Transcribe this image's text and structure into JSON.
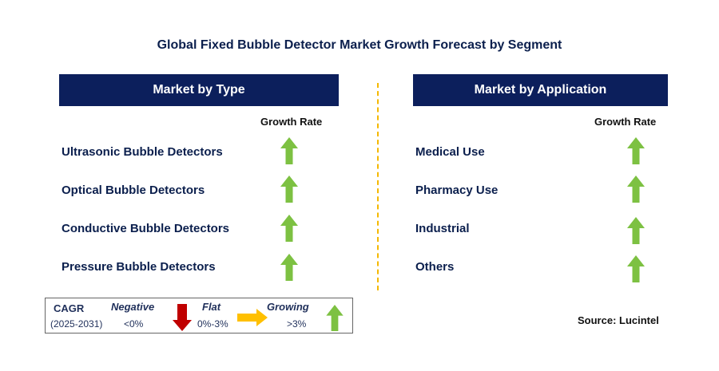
{
  "title": "Global Fixed Bubble Detector Market Growth Forecast by Segment",
  "left_panel": {
    "header": "Market by Type",
    "growth_label": "Growth Rate",
    "items": [
      {
        "label": "Ultrasonic Bubble Detectors",
        "trend": "growing"
      },
      {
        "label": "Optical Bubble Detectors",
        "trend": "growing"
      },
      {
        "label": "Conductive Bubble Detectors",
        "trend": "growing"
      },
      {
        "label": "Pressure Bubble Detectors",
        "trend": "growing"
      }
    ]
  },
  "right_panel": {
    "header": "Market by Application",
    "growth_label": "Growth Rate",
    "items": [
      {
        "label": "Medical Use",
        "trend": "growing"
      },
      {
        "label": "Pharmacy Use",
        "trend": "growing"
      },
      {
        "label": "Industrial",
        "trend": "growing"
      },
      {
        "label": "Others",
        "trend": "growing"
      }
    ]
  },
  "legend": {
    "cagr": "CAGR",
    "period": "(2025-2031)",
    "negative": {
      "label": "Negative",
      "range": "<0%",
      "icon": "down-arrow-red"
    },
    "flat": {
      "label": "Flat",
      "range": "0%-3%",
      "icon": "right-arrow-yellow"
    },
    "growing": {
      "label": "Growing",
      "range": ">3%",
      "icon": "up-arrow-green"
    }
  },
  "source": "Source: Lucintel",
  "colors": {
    "header_bg": "#0c1f5c",
    "growing": "#7dc142",
    "negative": "#c00000",
    "flat": "#ffc000",
    "divider": "#f5b800"
  }
}
